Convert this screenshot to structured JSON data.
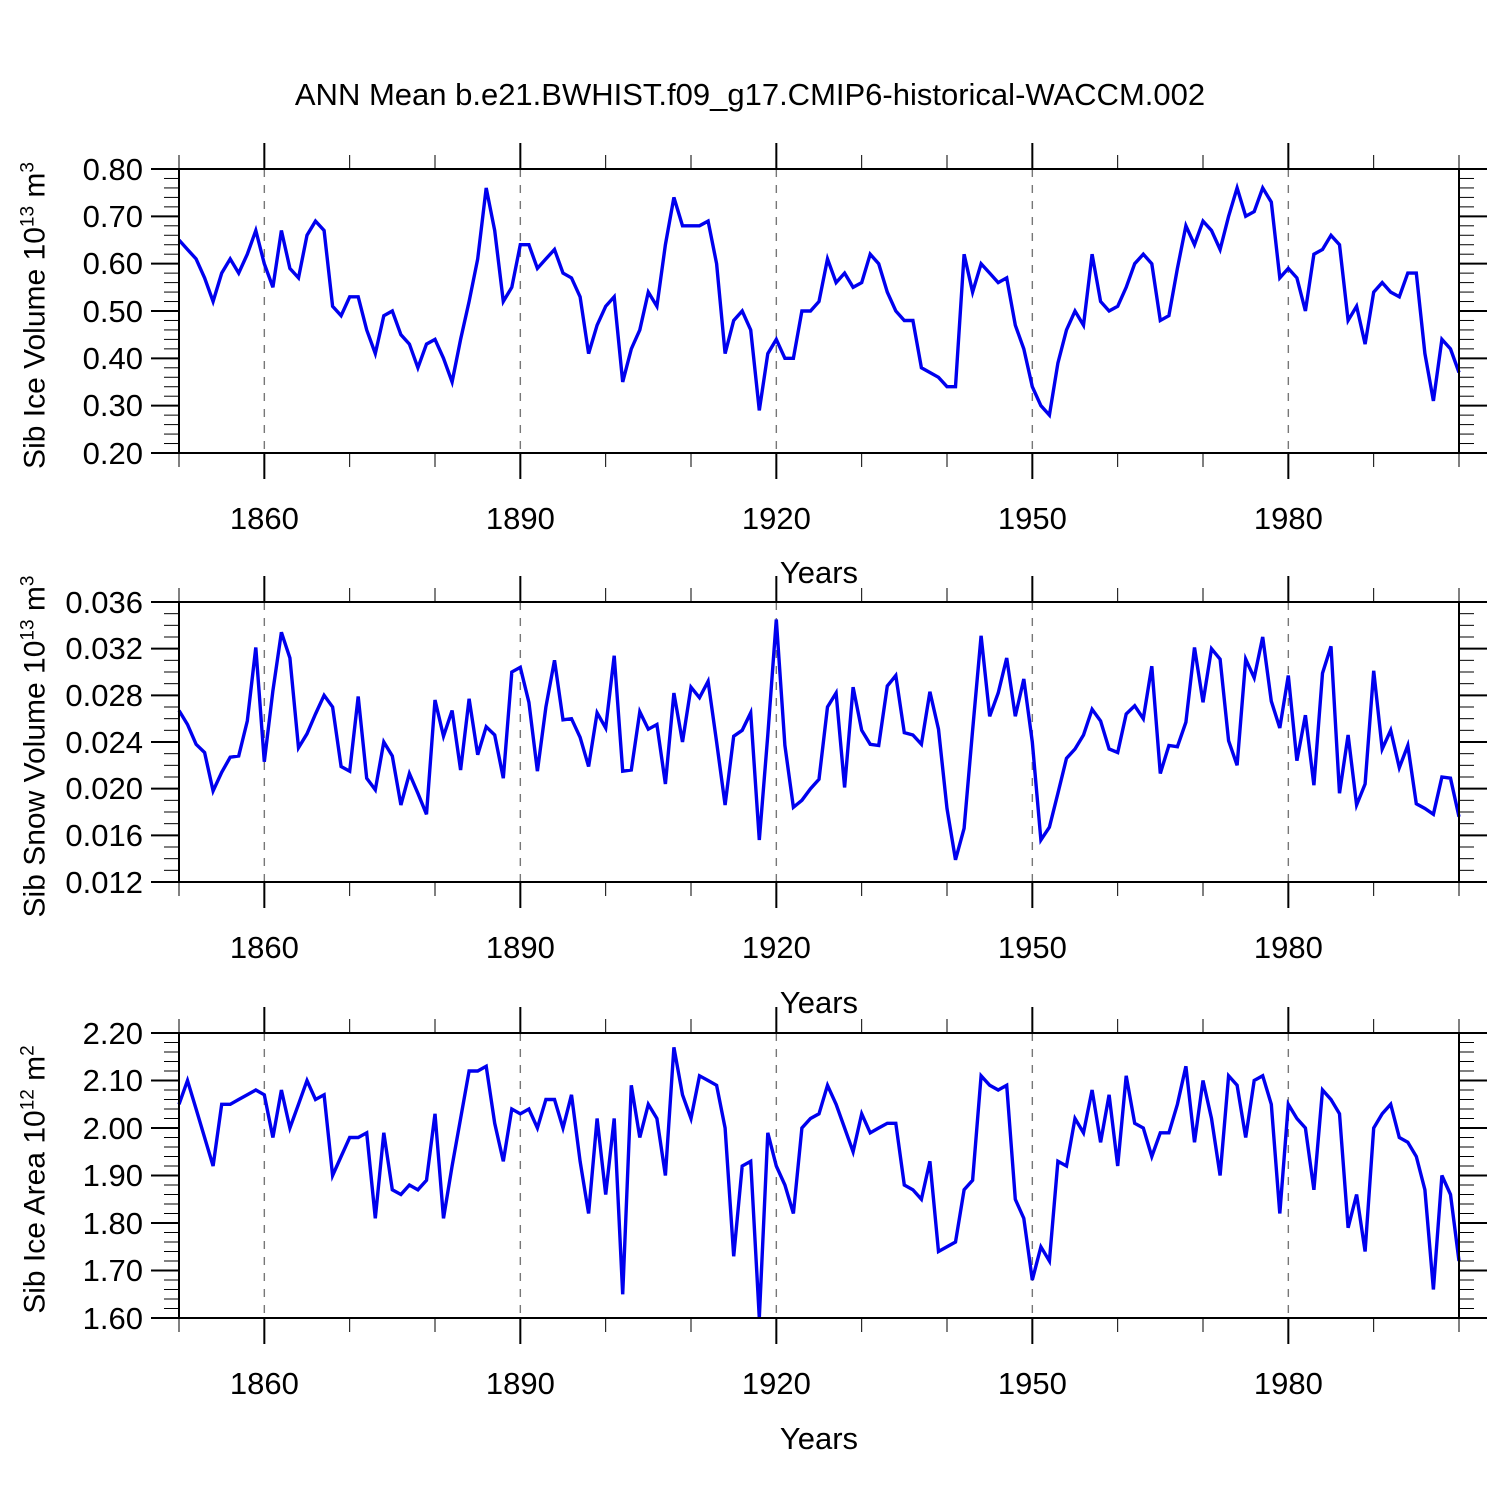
{
  "title": "ANN Mean b.e21.BWHIST.f09_g17.CMIP6-historical-WACCM.002",
  "xlabel": "Years",
  "line_color": "#0000EE",
  "grid_color": "#777777",
  "axis_color": "#000000",
  "chart_data": [
    {
      "type": "line",
      "name": "sib-ice-volume",
      "ylabel_prefix": "Sib Ice Volume 10",
      "ylabel_exp": "13",
      "ylabel_unit": " m",
      "ylabel_unit_exp": "3",
      "xlabel": "Years",
      "xlim": [
        1850,
        2000
      ],
      "ylim": [
        0.2,
        0.8
      ],
      "x_start": 1850,
      "x_step": 1,
      "x_major_values": [
        1860,
        1890,
        1920,
        1950,
        1980
      ],
      "x_major_labels": [
        "1860",
        "1890",
        "1920",
        "1950",
        "1980"
      ],
      "x_minor_step": 10,
      "y_major_values": [
        0.2,
        0.3,
        0.4,
        0.5,
        0.6,
        0.7,
        0.8
      ],
      "y_major_labels": [
        "0.20",
        "0.30",
        "0.40",
        "0.50",
        "0.60",
        "0.70",
        "0.80"
      ],
      "y_minor_step": 0.02,
      "grid_on_major_x": true,
      "legend": "none",
      "values": [
        0.65,
        0.63,
        0.61,
        0.57,
        0.52,
        0.58,
        0.61,
        0.58,
        0.62,
        0.67,
        0.6,
        0.55,
        0.67,
        0.59,
        0.57,
        0.66,
        0.69,
        0.67,
        0.51,
        0.49,
        0.53,
        0.53,
        0.46,
        0.41,
        0.49,
        0.5,
        0.45,
        0.43,
        0.38,
        0.43,
        0.44,
        0.4,
        0.35,
        0.44,
        0.52,
        0.61,
        0.76,
        0.67,
        0.52,
        0.55,
        0.64,
        0.64,
        0.59,
        0.61,
        0.63,
        0.58,
        0.57,
        0.53,
        0.41,
        0.47,
        0.51,
        0.53,
        0.35,
        0.42,
        0.46,
        0.54,
        0.51,
        0.64,
        0.74,
        0.68,
        0.68,
        0.68,
        0.69,
        0.6,
        0.41,
        0.48,
        0.5,
        0.46,
        0.29,
        0.41,
        0.44,
        0.4,
        0.4,
        0.5,
        0.5,
        0.52,
        0.61,
        0.56,
        0.58,
        0.55,
        0.56,
        0.62,
        0.6,
        0.54,
        0.5,
        0.48,
        0.48,
        0.38,
        0.37,
        0.36,
        0.34,
        0.34,
        0.62,
        0.54,
        0.6,
        0.58,
        0.56,
        0.57,
        0.47,
        0.42,
        0.34,
        0.3,
        0.28,
        0.39,
        0.46,
        0.5,
        0.47,
        0.62,
        0.52,
        0.5,
        0.51,
        0.55,
        0.6,
        0.62,
        0.6,
        0.48,
        0.49,
        0.59,
        0.68,
        0.64,
        0.69,
        0.67,
        0.63,
        0.7,
        0.76,
        0.7,
        0.71,
        0.76,
        0.73,
        0.57,
        0.59,
        0.57,
        0.5,
        0.62,
        0.63,
        0.66,
        0.64,
        0.48,
        0.51,
        0.43,
        0.54,
        0.56,
        0.54,
        0.53,
        0.58,
        0.58,
        0.41,
        0.31,
        0.44,
        0.42,
        0.37
      ]
    },
    {
      "type": "line",
      "name": "sib-snow-volume",
      "ylabel_prefix": "Sib Snow Volume 10",
      "ylabel_exp": "13",
      "ylabel_unit": " m",
      "ylabel_unit_exp": "3",
      "xlabel": "Years",
      "xlim": [
        1850,
        2000
      ],
      "ylim": [
        0.012,
        0.036
      ],
      "x_start": 1850,
      "x_step": 1,
      "x_major_values": [
        1860,
        1890,
        1920,
        1950,
        1980
      ],
      "x_major_labels": [
        "1860",
        "1890",
        "1920",
        "1950",
        "1980"
      ],
      "x_minor_step": 10,
      "y_major_values": [
        0.012,
        0.016,
        0.02,
        0.024,
        0.028,
        0.032,
        0.036
      ],
      "y_major_labels": [
        "0.012",
        "0.016",
        "0.020",
        "0.024",
        "0.028",
        "0.032",
        "0.036"
      ],
      "y_minor_step": 0.001,
      "grid_on_major_x": true,
      "legend": "none",
      "values": [
        0.0267,
        0.0255,
        0.0238,
        0.0231,
        0.0198,
        0.0214,
        0.0227,
        0.0228,
        0.0258,
        0.0321,
        0.0223,
        0.0284,
        0.0334,
        0.0312,
        0.0235,
        0.0247,
        0.0264,
        0.028,
        0.027,
        0.0219,
        0.0215,
        0.0279,
        0.0209,
        0.0199,
        0.024,
        0.0228,
        0.0186,
        0.0213,
        0.0196,
        0.0178,
        0.0276,
        0.0245,
        0.0267,
        0.0216,
        0.0277,
        0.0229,
        0.0253,
        0.0246,
        0.0209,
        0.03,
        0.0304,
        0.0274,
        0.0215,
        0.027,
        0.031,
        0.0259,
        0.026,
        0.0244,
        0.0219,
        0.0265,
        0.0252,
        0.0314,
        0.0215,
        0.0216,
        0.0266,
        0.0251,
        0.0255,
        0.0204,
        0.0282,
        0.024,
        0.0287,
        0.0278,
        0.0292,
        0.024,
        0.0186,
        0.0245,
        0.025,
        0.0265,
        0.0156,
        0.0246,
        0.0345,
        0.0237,
        0.0184,
        0.019,
        0.02,
        0.0208,
        0.027,
        0.0282,
        0.0201,
        0.0287,
        0.025,
        0.0238,
        0.0237,
        0.0288,
        0.0297,
        0.0248,
        0.0246,
        0.0238,
        0.0283,
        0.0251,
        0.0183,
        0.0139,
        0.0166,
        0.025,
        0.0331,
        0.0262,
        0.0282,
        0.0312,
        0.0262,
        0.0294,
        0.024,
        0.0156,
        0.0167,
        0.0196,
        0.0226,
        0.0234,
        0.0246,
        0.0268,
        0.0258,
        0.0234,
        0.0231,
        0.0264,
        0.0271,
        0.026,
        0.0305,
        0.0213,
        0.0237,
        0.0236,
        0.0257,
        0.0321,
        0.0274,
        0.032,
        0.0311,
        0.0241,
        0.022,
        0.0311,
        0.0295,
        0.033,
        0.0275,
        0.0252,
        0.0297,
        0.0224,
        0.0263,
        0.0203,
        0.0299,
        0.0322,
        0.0196,
        0.0246,
        0.0186,
        0.0204,
        0.0301,
        0.0234,
        0.025,
        0.0218,
        0.0237,
        0.0187,
        0.0183,
        0.0178,
        0.021,
        0.0209,
        0.0176
      ]
    },
    {
      "type": "line",
      "name": "sib-ice-area",
      "ylabel_prefix": "Sib Ice Area 10",
      "ylabel_exp": "12",
      "ylabel_unit": " m",
      "ylabel_unit_exp": "2",
      "xlabel": "Years",
      "xlim": [
        1850,
        2000
      ],
      "ylim": [
        1.6,
        2.2
      ],
      "x_start": 1850,
      "x_step": 1,
      "x_major_values": [
        1860,
        1890,
        1920,
        1950,
        1980
      ],
      "x_major_labels": [
        "1860",
        "1890",
        "1920",
        "1950",
        "1980"
      ],
      "x_minor_step": 10,
      "y_major_values": [
        1.6,
        1.7,
        1.8,
        1.9,
        2.0,
        2.1,
        2.2
      ],
      "y_major_labels": [
        "1.60",
        "1.70",
        "1.80",
        "1.90",
        "2.00",
        "2.10",
        "2.20"
      ],
      "y_minor_step": 0.02,
      "grid_on_major_x": true,
      "legend": "none",
      "values": [
        2.05,
        2.1,
        2.04,
        1.98,
        1.92,
        2.05,
        2.05,
        2.06,
        2.07,
        2.08,
        2.07,
        1.98,
        2.08,
        2.0,
        2.05,
        2.1,
        2.06,
        2.07,
        1.9,
        1.94,
        1.98,
        1.98,
        1.99,
        1.81,
        1.99,
        1.87,
        1.86,
        1.88,
        1.87,
        1.89,
        2.03,
        1.81,
        1.92,
        2.02,
        2.12,
        2.12,
        2.13,
        2.01,
        1.93,
        2.04,
        2.03,
        2.04,
        2.0,
        2.06,
        2.06,
        2.0,
        2.07,
        1.93,
        1.82,
        2.02,
        1.86,
        2.02,
        1.65,
        2.09,
        1.98,
        2.05,
        2.02,
        1.9,
        2.17,
        2.07,
        2.02,
        2.11,
        2.1,
        2.09,
        2.0,
        1.73,
        1.92,
        1.93,
        1.6,
        1.99,
        1.92,
        1.88,
        1.82,
        2.0,
        2.02,
        2.03,
        2.09,
        2.05,
        2.0,
        1.95,
        2.03,
        1.99,
        2.0,
        2.01,
        2.01,
        1.88,
        1.87,
        1.85,
        1.93,
        1.74,
        1.75,
        1.76,
        1.87,
        1.89,
        2.11,
        2.09,
        2.08,
        2.09,
        1.85,
        1.81,
        1.68,
        1.75,
        1.72,
        1.93,
        1.92,
        2.02,
        1.99,
        2.08,
        1.97,
        2.07,
        1.92,
        2.11,
        2.01,
        2.0,
        1.94,
        1.99,
        1.99,
        2.05,
        2.13,
        1.97,
        2.1,
        2.02,
        1.9,
        2.11,
        2.09,
        1.98,
        2.1,
        2.11,
        2.05,
        1.82,
        2.05,
        2.02,
        2.0,
        1.87,
        2.08,
        2.06,
        2.03,
        1.79,
        1.86,
        1.74,
        2.0,
        2.03,
        2.05,
        1.98,
        1.97,
        1.94,
        1.87,
        1.66,
        1.9,
        1.86,
        1.72
      ]
    }
  ]
}
